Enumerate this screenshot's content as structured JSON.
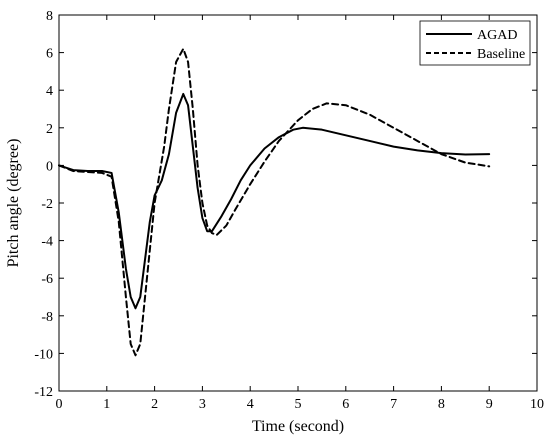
{
  "chart_data": {
    "type": "line",
    "xlabel": "Time (second)",
    "ylabel": "Pitch angle (degree)",
    "xlim": [
      0,
      10
    ],
    "ylim": [
      -12,
      8
    ],
    "xticks": [
      0,
      1,
      2,
      3,
      4,
      5,
      6,
      7,
      8,
      9,
      10
    ],
    "yticks": [
      -12,
      -10,
      -8,
      -6,
      -4,
      -2,
      0,
      2,
      4,
      6,
      8
    ],
    "grid": false,
    "legend_position": "top-right",
    "series": [
      {
        "name": "AGAD",
        "style": "solid",
        "color": "#000000",
        "points": [
          [
            0.0,
            0.0
          ],
          [
            0.3,
            -0.25
          ],
          [
            0.6,
            -0.3
          ],
          [
            0.9,
            -0.3
          ],
          [
            1.1,
            -0.4
          ],
          [
            1.25,
            -2.5
          ],
          [
            1.4,
            -5.5
          ],
          [
            1.5,
            -7.0
          ],
          [
            1.6,
            -7.6
          ],
          [
            1.7,
            -7.0
          ],
          [
            1.8,
            -5.0
          ],
          [
            1.9,
            -3.0
          ],
          [
            2.0,
            -1.6
          ],
          [
            2.15,
            -0.8
          ],
          [
            2.3,
            0.6
          ],
          [
            2.45,
            2.8
          ],
          [
            2.6,
            3.8
          ],
          [
            2.7,
            3.2
          ],
          [
            2.8,
            1.0
          ],
          [
            2.9,
            -1.2
          ],
          [
            3.0,
            -2.8
          ],
          [
            3.1,
            -3.5
          ],
          [
            3.2,
            -3.5
          ],
          [
            3.4,
            -2.7
          ],
          [
            3.6,
            -1.8
          ],
          [
            3.8,
            -0.8
          ],
          [
            4.0,
            0.0
          ],
          [
            4.3,
            0.9
          ],
          [
            4.6,
            1.5
          ],
          [
            4.9,
            1.9
          ],
          [
            5.1,
            2.0
          ],
          [
            5.5,
            1.9
          ],
          [
            6.0,
            1.6
          ],
          [
            6.5,
            1.3
          ],
          [
            7.0,
            1.0
          ],
          [
            7.5,
            0.8
          ],
          [
            8.0,
            0.65
          ],
          [
            8.5,
            0.58
          ],
          [
            9.0,
            0.6
          ]
        ]
      },
      {
        "name": "Baseline",
        "style": "dashed",
        "color": "#000000",
        "points": [
          [
            0.0,
            0.0
          ],
          [
            0.3,
            -0.3
          ],
          [
            0.6,
            -0.35
          ],
          [
            0.9,
            -0.4
          ],
          [
            1.1,
            -0.6
          ],
          [
            1.25,
            -3.0
          ],
          [
            1.4,
            -7.0
          ],
          [
            1.5,
            -9.5
          ],
          [
            1.6,
            -10.1
          ],
          [
            1.7,
            -9.5
          ],
          [
            1.8,
            -7.0
          ],
          [
            1.9,
            -4.5
          ],
          [
            2.0,
            -2.0
          ],
          [
            2.1,
            -0.5
          ],
          [
            2.2,
            1.0
          ],
          [
            2.3,
            3.0
          ],
          [
            2.45,
            5.5
          ],
          [
            2.6,
            6.2
          ],
          [
            2.7,
            5.5
          ],
          [
            2.8,
            3.0
          ],
          [
            2.9,
            0.0
          ],
          [
            3.0,
            -2.0
          ],
          [
            3.1,
            -3.2
          ],
          [
            3.2,
            -3.6
          ],
          [
            3.3,
            -3.7
          ],
          [
            3.5,
            -3.2
          ],
          [
            3.7,
            -2.3
          ],
          [
            4.0,
            -1.0
          ],
          [
            4.3,
            0.2
          ],
          [
            4.6,
            1.3
          ],
          [
            5.0,
            2.4
          ],
          [
            5.3,
            3.0
          ],
          [
            5.6,
            3.3
          ],
          [
            6.0,
            3.2
          ],
          [
            6.5,
            2.7
          ],
          [
            7.0,
            2.0
          ],
          [
            7.5,
            1.3
          ],
          [
            8.0,
            0.6
          ],
          [
            8.5,
            0.15
          ],
          [
            9.0,
            -0.05
          ]
        ]
      }
    ]
  }
}
